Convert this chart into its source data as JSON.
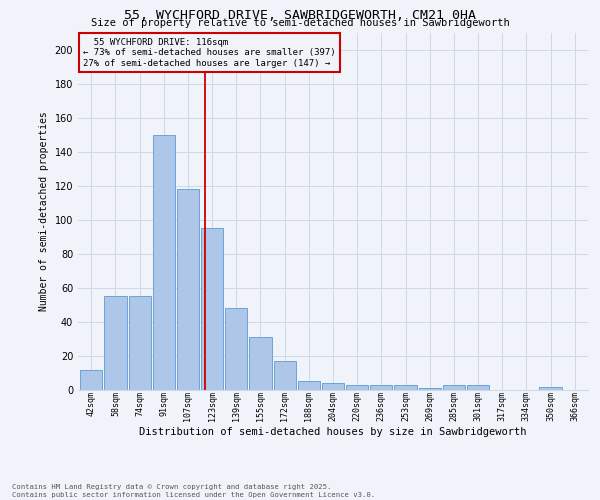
{
  "title": "55, WYCHFORD DRIVE, SAWBRIDGEWORTH, CM21 0HA",
  "subtitle": "Size of property relative to semi-detached houses in Sawbridgeworth",
  "xlabel": "Distribution of semi-detached houses by size in Sawbridgeworth",
  "ylabel": "Number of semi-detached properties",
  "bin_labels": [
    "42sqm",
    "58sqm",
    "74sqm",
    "91sqm",
    "107sqm",
    "123sqm",
    "139sqm",
    "155sqm",
    "172sqm",
    "188sqm",
    "204sqm",
    "220sqm",
    "236sqm",
    "253sqm",
    "269sqm",
    "285sqm",
    "301sqm",
    "317sqm",
    "334sqm",
    "350sqm",
    "366sqm"
  ],
  "bar_heights": [
    12,
    55,
    55,
    150,
    118,
    95,
    48,
    31,
    17,
    5,
    4,
    3,
    3,
    3,
    1,
    3,
    3,
    0,
    0,
    2,
    0
  ],
  "bar_color": "#aec6e8",
  "bar_edge_color": "#5b9bd5",
  "grid_color": "#d0d8e8",
  "vline_color": "#cc0000",
  "annotation_title": "55 WYCHFORD DRIVE: 116sqm",
  "annotation_line1": "← 73% of semi-detached houses are smaller (397)",
  "annotation_line2": "27% of semi-detached houses are larger (147) →",
  "annotation_box_color": "#cc0000",
  "footnote": "Contains HM Land Registry data © Crown copyright and database right 2025.\nContains public sector information licensed under the Open Government Licence v3.0.",
  "bg_color": "#f0f4fa",
  "ylim": [
    0,
    210
  ],
  "yticks": [
    0,
    20,
    40,
    60,
    80,
    100,
    120,
    140,
    160,
    180,
    200
  ]
}
